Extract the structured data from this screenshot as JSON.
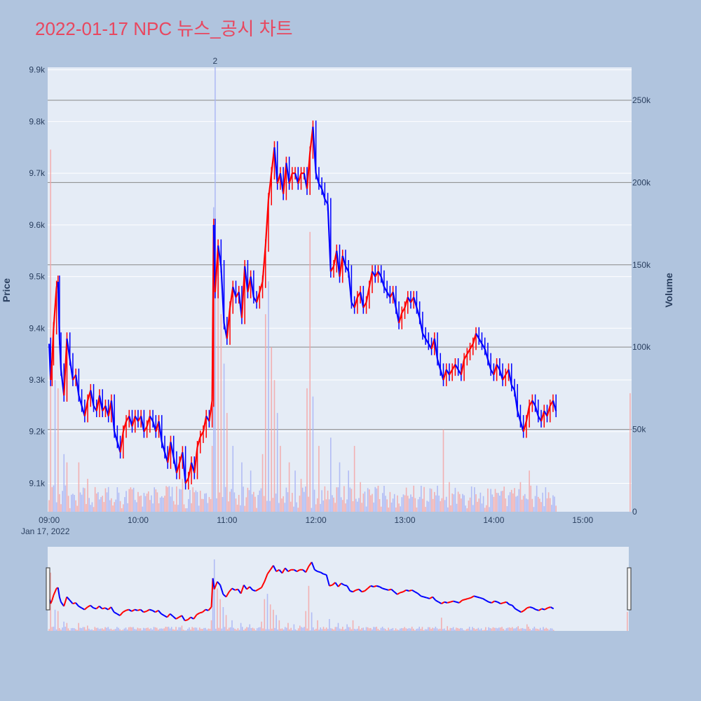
{
  "chart_data": {
    "type": "candlestick",
    "title": "2022-01-17 NPC 뉴스_공시 차트",
    "ylabel": "Price",
    "y2label": "Volume",
    "date_label": "Jan 17, 2022",
    "ylim": [
      9045,
      9905
    ],
    "y2lim": [
      0,
      270000
    ],
    "price_ticks": [
      "9.1k",
      "9.2k",
      "9.3k",
      "9.4k",
      "9.5k",
      "9.6k",
      "9.7k",
      "9.8k",
      "9.9k"
    ],
    "price_tick_values": [
      9100,
      9200,
      9300,
      9400,
      9500,
      9600,
      9700,
      9800,
      9900
    ],
    "volume_ticks": [
      "0",
      "50k",
      "100k",
      "150k",
      "200k",
      "250k"
    ],
    "volume_tick_values": [
      0,
      50000,
      100000,
      150000,
      200000,
      250000
    ],
    "time_ticks": [
      "09:00",
      "10:00",
      "11:00",
      "12:00",
      "13:00",
      "14:00",
      "15:00"
    ],
    "time_tick_minutes": [
      540,
      600,
      660,
      720,
      780,
      840,
      900
    ],
    "xlim_minutes": [
      539,
      933
    ],
    "annotation": {
      "text": "2",
      "minute": 652,
      "price": 9905
    },
    "increasing_color": "#ff0000",
    "decreasing_color": "#0000ff",
    "price_path": [
      [
        540,
        9370
      ],
      [
        541,
        9300
      ],
      [
        542,
        9340
      ],
      [
        543,
        9400
      ],
      [
        545,
        9480
      ],
      [
        546,
        9490
      ],
      [
        547,
        9380
      ],
      [
        548,
        9320
      ],
      [
        550,
        9270
      ],
      [
        552,
        9380
      ],
      [
        554,
        9340
      ],
      [
        556,
        9300
      ],
      [
        558,
        9310
      ],
      [
        560,
        9270
      ],
      [
        562,
        9250
      ],
      [
        564,
        9230
      ],
      [
        566,
        9260
      ],
      [
        568,
        9280
      ],
      [
        570,
        9250
      ],
      [
        572,
        9240
      ],
      [
        574,
        9270
      ],
      [
        576,
        9240
      ],
      [
        578,
        9250
      ],
      [
        580,
        9230
      ],
      [
        582,
        9260
      ],
      [
        584,
        9200
      ],
      [
        586,
        9180
      ],
      [
        588,
        9160
      ],
      [
        590,
        9200
      ],
      [
        592,
        9220
      ],
      [
        594,
        9230
      ],
      [
        596,
        9210
      ],
      [
        598,
        9230
      ],
      [
        600,
        9220
      ],
      [
        602,
        9230
      ],
      [
        604,
        9200
      ],
      [
        606,
        9210
      ],
      [
        608,
        9230
      ],
      [
        610,
        9220
      ],
      [
        612,
        9200
      ],
      [
        614,
        9220
      ],
      [
        616,
        9180
      ],
      [
        618,
        9160
      ],
      [
        620,
        9140
      ],
      [
        622,
        9180
      ],
      [
        624,
        9150
      ],
      [
        626,
        9120
      ],
      [
        628,
        9140
      ],
      [
        630,
        9160
      ],
      [
        632,
        9100
      ],
      [
        634,
        9110
      ],
      [
        636,
        9140
      ],
      [
        638,
        9120
      ],
      [
        640,
        9170
      ],
      [
        642,
        9190
      ],
      [
        644,
        9200
      ],
      [
        646,
        9230
      ],
      [
        648,
        9220
      ],
      [
        650,
        9260
      ],
      [
        651,
        9600
      ],
      [
        652,
        9470
      ],
      [
        654,
        9560
      ],
      [
        656,
        9520
      ],
      [
        658,
        9410
      ],
      [
        660,
        9380
      ],
      [
        662,
        9440
      ],
      [
        664,
        9480
      ],
      [
        666,
        9460
      ],
      [
        668,
        9470
      ],
      [
        670,
        9420
      ],
      [
        672,
        9520
      ],
      [
        674,
        9470
      ],
      [
        676,
        9500
      ],
      [
        678,
        9460
      ],
      [
        680,
        9450
      ],
      [
        682,
        9470
      ],
      [
        684,
        9490
      ],
      [
        686,
        9560
      ],
      [
        688,
        9650
      ],
      [
        690,
        9700
      ],
      [
        692,
        9750
      ],
      [
        694,
        9680
      ],
      [
        696,
        9700
      ],
      [
        698,
        9660
      ],
      [
        700,
        9720
      ],
      [
        702,
        9680
      ],
      [
        704,
        9700
      ],
      [
        706,
        9700
      ],
      [
        708,
        9680
      ],
      [
        710,
        9700
      ],
      [
        712,
        9700
      ],
      [
        714,
        9670
      ],
      [
        716,
        9740
      ],
      [
        718,
        9790
      ],
      [
        720,
        9700
      ],
      [
        722,
        9680
      ],
      [
        724,
        9670
      ],
      [
        726,
        9650
      ],
      [
        728,
        9640
      ],
      [
        730,
        9510
      ],
      [
        732,
        9520
      ],
      [
        734,
        9550
      ],
      [
        736,
        9500
      ],
      [
        738,
        9540
      ],
      [
        740,
        9520
      ],
      [
        742,
        9510
      ],
      [
        744,
        9450
      ],
      [
        746,
        9440
      ],
      [
        748,
        9460
      ],
      [
        750,
        9470
      ],
      [
        752,
        9440
      ],
      [
        754,
        9450
      ],
      [
        756,
        9480
      ],
      [
        758,
        9510
      ],
      [
        760,
        9500
      ],
      [
        762,
        9510
      ],
      [
        764,
        9500
      ],
      [
        766,
        9480
      ],
      [
        768,
        9470
      ],
      [
        770,
        9460
      ],
      [
        772,
        9470
      ],
      [
        774,
        9440
      ],
      [
        776,
        9410
      ],
      [
        778,
        9430
      ],
      [
        780,
        9440
      ],
      [
        782,
        9460
      ],
      [
        784,
        9450
      ],
      [
        786,
        9460
      ],
      [
        788,
        9440
      ],
      [
        790,
        9420
      ],
      [
        792,
        9390
      ],
      [
        794,
        9380
      ],
      [
        796,
        9370
      ],
      [
        798,
        9360
      ],
      [
        800,
        9380
      ],
      [
        802,
        9340
      ],
      [
        804,
        9320
      ],
      [
        806,
        9300
      ],
      [
        808,
        9320
      ],
      [
        810,
        9310
      ],
      [
        812,
        9320
      ],
      [
        814,
        9330
      ],
      [
        816,
        9320
      ],
      [
        818,
        9310
      ],
      [
        820,
        9340
      ],
      [
        822,
        9350
      ],
      [
        824,
        9360
      ],
      [
        826,
        9370
      ],
      [
        828,
        9390
      ],
      [
        830,
        9380
      ],
      [
        832,
        9370
      ],
      [
        834,
        9360
      ],
      [
        836,
        9340
      ],
      [
        838,
        9320
      ],
      [
        840,
        9310
      ],
      [
        842,
        9330
      ],
      [
        844,
        9320
      ],
      [
        846,
        9300
      ],
      [
        848,
        9310
      ],
      [
        850,
        9320
      ],
      [
        852,
        9290
      ],
      [
        854,
        9280
      ],
      [
        856,
        9240
      ],
      [
        858,
        9220
      ],
      [
        860,
        9200
      ],
      [
        862,
        9220
      ],
      [
        864,
        9250
      ],
      [
        866,
        9260
      ],
      [
        868,
        9250
      ],
      [
        870,
        9230
      ],
      [
        872,
        9220
      ],
      [
        874,
        9240
      ],
      [
        876,
        9230
      ],
      [
        878,
        9250
      ],
      [
        880,
        9260
      ],
      [
        882,
        9240
      ]
    ],
    "volume_spikes": [
      [
        541,
        220000
      ],
      [
        544,
        80000
      ],
      [
        546,
        75000
      ],
      [
        550,
        35000
      ],
      [
        552,
        30000
      ],
      [
        560,
        30000
      ],
      [
        566,
        20000
      ],
      [
        580,
        15000
      ],
      [
        600,
        12000
      ],
      [
        620,
        15000
      ],
      [
        630,
        20000
      ],
      [
        640,
        12000
      ],
      [
        650,
        40000
      ],
      [
        651,
        185000
      ],
      [
        652,
        270000
      ],
      [
        654,
        160000
      ],
      [
        656,
        120000
      ],
      [
        658,
        90000
      ],
      [
        660,
        60000
      ],
      [
        664,
        40000
      ],
      [
        670,
        30000
      ],
      [
        676,
        25000
      ],
      [
        684,
        35000
      ],
      [
        686,
        120000
      ],
      [
        688,
        140000
      ],
      [
        690,
        100000
      ],
      [
        692,
        80000
      ],
      [
        694,
        60000
      ],
      [
        696,
        40000
      ],
      [
        702,
        30000
      ],
      [
        706,
        25000
      ],
      [
        710,
        20000
      ],
      [
        714,
        75000
      ],
      [
        716,
        170000
      ],
      [
        718,
        70000
      ],
      [
        722,
        40000
      ],
      [
        730,
        45000
      ],
      [
        736,
        30000
      ],
      [
        742,
        25000
      ],
      [
        746,
        40000
      ],
      [
        750,
        18000
      ],
      [
        760,
        15000
      ],
      [
        770,
        12000
      ],
      [
        780,
        10000
      ],
      [
        790,
        9000
      ],
      [
        800,
        12000
      ],
      [
        806,
        50000
      ],
      [
        810,
        18000
      ],
      [
        820,
        10000
      ],
      [
        830,
        8000
      ],
      [
        840,
        9000
      ],
      [
        850,
        10000
      ],
      [
        858,
        18000
      ],
      [
        864,
        25000
      ],
      [
        870,
        9000
      ],
      [
        880,
        10000
      ],
      [
        932,
        72000
      ]
    ]
  }
}
